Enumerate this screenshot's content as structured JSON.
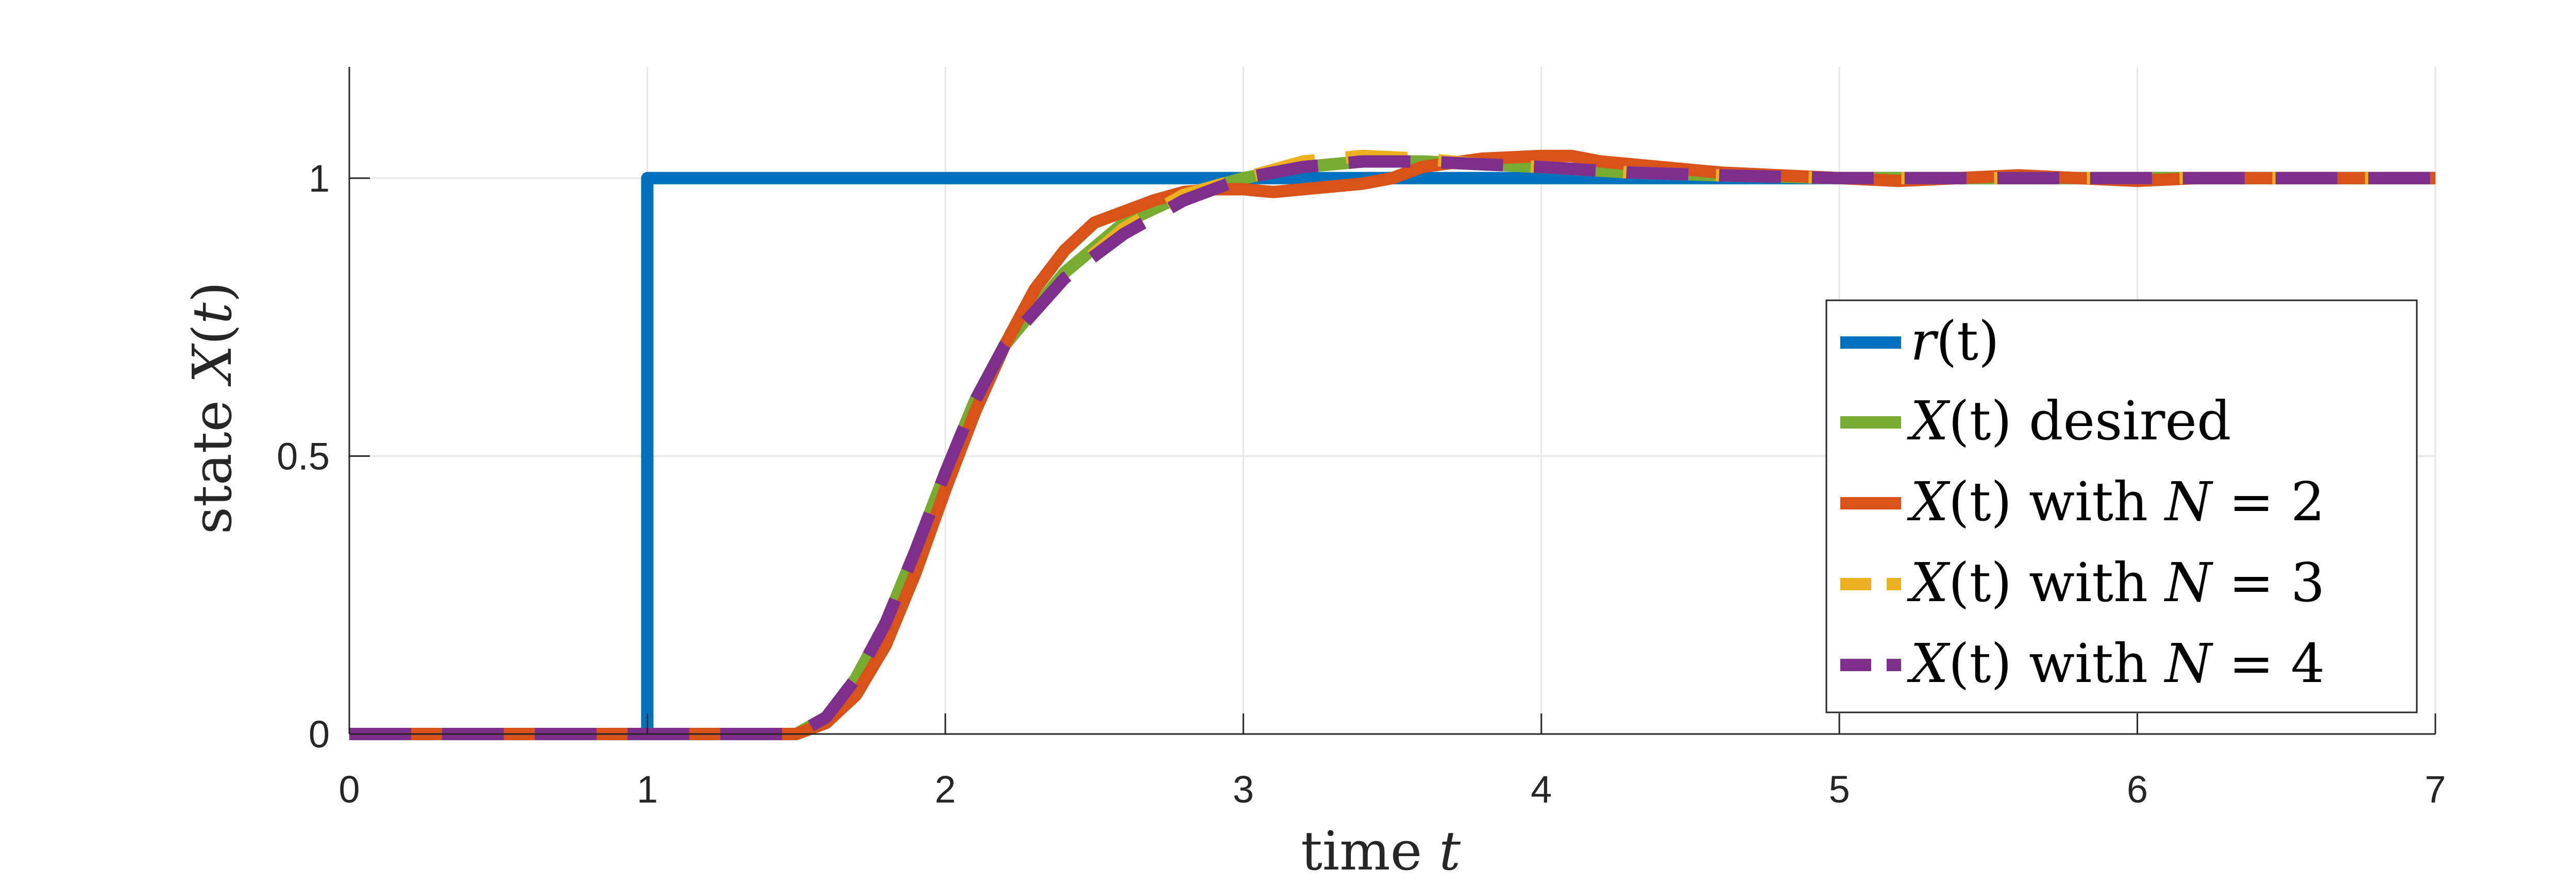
{
  "chart_data": {
    "type": "line",
    "xlabel": "time t",
    "xlabel_parts": {
      "text": "time",
      "var": "t"
    },
    "ylabel": "state X(t)",
    "ylabel_parts": {
      "text": "state",
      "var": "X",
      "arg": "t"
    },
    "xlim": [
      0,
      7
    ],
    "ylim": [
      0,
      1.2
    ],
    "x_ticks": [
      "0",
      "1",
      "2",
      "3",
      "4",
      "5",
      "6",
      "7"
    ],
    "y_ticks": [
      "0",
      "0.5",
      "1"
    ],
    "grid": true,
    "legend_position": "lower-right",
    "series": [
      {
        "name": "r(t)",
        "name_parts": {
          "var": "r",
          "rest": "(t)"
        },
        "color": "#0072BD",
        "style": "solid",
        "x": [
          0,
          1,
          1,
          7
        ],
        "y": [
          0,
          0,
          1,
          1
        ]
      },
      {
        "name": "X(t) desired",
        "name_parts": {
          "var": "X",
          "rest": "(t) desired"
        },
        "color": "#77AC30",
        "style": "solid",
        "x": [
          0,
          1.5,
          1.6,
          1.7,
          1.8,
          1.9,
          2.0,
          2.1,
          2.2,
          2.4,
          2.6,
          2.8,
          3.0,
          3.2,
          3.4,
          3.6,
          3.8,
          4.0,
          4.3,
          4.6,
          5.0,
          5.5,
          6.0,
          6.5,
          7.0
        ],
        "y": [
          0,
          0,
          0.03,
          0.1,
          0.2,
          0.33,
          0.47,
          0.6,
          0.7,
          0.83,
          0.92,
          0.97,
          1.0,
          1.02,
          1.03,
          1.03,
          1.025,
          1.02,
          1.01,
          1.005,
          1.0,
          1.0,
          1.0,
          1.0,
          1.0
        ]
      },
      {
        "name": "X(t) with N = 2",
        "name_parts": {
          "var": "X",
          "rest": "(t) with",
          "n_var": "N",
          "n_val": " = 2"
        },
        "color": "#D95319",
        "style": "solid",
        "x": [
          0,
          1.5,
          1.6,
          1.7,
          1.8,
          1.9,
          2.0,
          2.1,
          2.2,
          2.3,
          2.4,
          2.5,
          2.6,
          2.7,
          2.8,
          2.9,
          3.0,
          3.1,
          3.2,
          3.3,
          3.4,
          3.5,
          3.6,
          3.8,
          4.0,
          4.1,
          4.2,
          4.4,
          4.6,
          4.8,
          5.0,
          5.2,
          5.4,
          5.6,
          5.8,
          6.0,
          6.2,
          6.4,
          6.6,
          6.8,
          7.0
        ],
        "y": [
          0,
          0,
          0.02,
          0.07,
          0.16,
          0.29,
          0.44,
          0.58,
          0.7,
          0.8,
          0.87,
          0.92,
          0.94,
          0.96,
          0.975,
          0.98,
          0.98,
          0.975,
          0.98,
          0.985,
          0.99,
          1.0,
          1.02,
          1.035,
          1.04,
          1.04,
          1.03,
          1.02,
          1.01,
          1.005,
          1.0,
          0.995,
          1.0,
          1.005,
          1.0,
          0.995,
          1.0,
          1.0,
          1.0,
          1.0,
          1.0
        ]
      },
      {
        "name": "X(t) with N = 3",
        "name_parts": {
          "var": "X",
          "rest": "(t) with",
          "n_var": "N",
          "n_val": " = 3"
        },
        "color": "#EDB120",
        "style": "dashed",
        "x": [
          0,
          1.5,
          1.6,
          1.7,
          1.8,
          1.9,
          2.0,
          2.1,
          2.2,
          2.4,
          2.6,
          2.8,
          3.0,
          3.2,
          3.4,
          3.6,
          3.8,
          4.0,
          4.3,
          4.6,
          5.0,
          5.5,
          6.0,
          6.5,
          7.0
        ],
        "y": [
          0,
          0,
          0.03,
          0.1,
          0.2,
          0.33,
          0.47,
          0.6,
          0.7,
          0.82,
          0.91,
          0.97,
          1.0,
          1.03,
          1.04,
          1.035,
          1.025,
          1.02,
          1.01,
          1.005,
          1.0,
          1.0,
          1.0,
          1.0,
          1.0
        ]
      },
      {
        "name": "X(t) with N = 4",
        "name_parts": {
          "var": "X",
          "rest": "(t) with",
          "n_var": "N",
          "n_val": " = 4"
        },
        "color": "#7E2F8E",
        "style": "dashed",
        "x": [
          0,
          1.5,
          1.6,
          1.7,
          1.8,
          1.9,
          2.0,
          2.1,
          2.2,
          2.4,
          2.6,
          2.8,
          3.0,
          3.2,
          3.4,
          3.6,
          3.8,
          4.0,
          4.3,
          4.6,
          5.0,
          5.5,
          6.0,
          6.5,
          7.0
        ],
        "y": [
          0,
          0,
          0.03,
          0.1,
          0.2,
          0.33,
          0.47,
          0.6,
          0.7,
          0.82,
          0.9,
          0.96,
          1.0,
          1.02,
          1.03,
          1.03,
          1.025,
          1.02,
          1.01,
          1.005,
          1.0,
          1.0,
          1.0,
          1.0,
          1.0
        ]
      }
    ]
  }
}
